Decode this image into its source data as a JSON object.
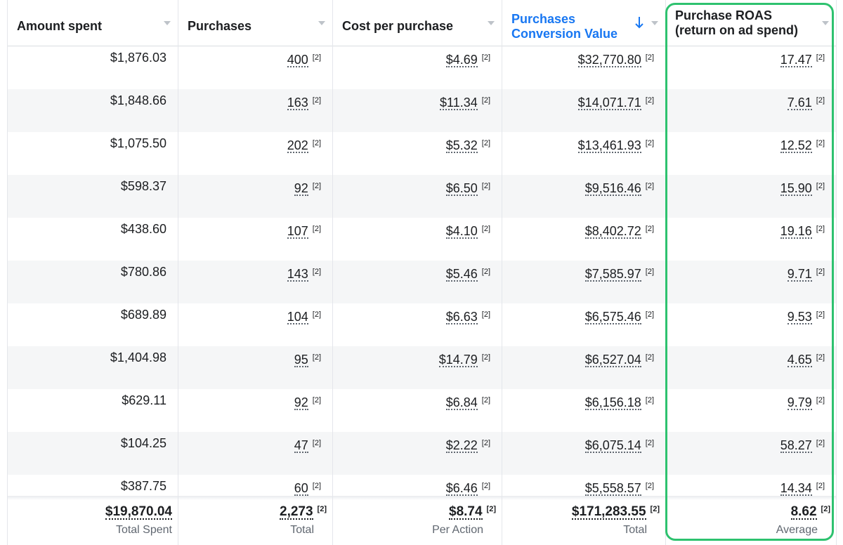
{
  "columns": [
    {
      "key": "amount_spent",
      "label": "Amount spent",
      "sorted": false
    },
    {
      "key": "purchases",
      "label": "Purchases",
      "sorted": false
    },
    {
      "key": "cost_per_purchase",
      "label": "Cost per purchase",
      "sorted": false
    },
    {
      "key": "conversion_value",
      "label": "Purchases Conversion Value",
      "sorted": true
    },
    {
      "key": "roas",
      "label": "Purchase ROAS (return on ad spend)",
      "sorted": false
    }
  ],
  "superscript": "[2]",
  "rows": [
    {
      "amount_spent": "$1,876.03",
      "purchases": "400",
      "cost_per_purchase": "$4.69",
      "conversion_value": "$32,770.80",
      "roas": "17.47"
    },
    {
      "amount_spent": "$1,848.66",
      "purchases": "163",
      "cost_per_purchase": "$11.34",
      "conversion_value": "$14,071.71",
      "roas": "7.61"
    },
    {
      "amount_spent": "$1,075.50",
      "purchases": "202",
      "cost_per_purchase": "$5.32",
      "conversion_value": "$13,461.93",
      "roas": "12.52"
    },
    {
      "amount_spent": "$598.37",
      "purchases": "92",
      "cost_per_purchase": "$6.50",
      "conversion_value": "$9,516.46",
      "roas": "15.90"
    },
    {
      "amount_spent": "$438.60",
      "purchases": "107",
      "cost_per_purchase": "$4.10",
      "conversion_value": "$8,402.72",
      "roas": "19.16"
    },
    {
      "amount_spent": "$780.86",
      "purchases": "143",
      "cost_per_purchase": "$5.46",
      "conversion_value": "$7,585.97",
      "roas": "9.71"
    },
    {
      "amount_spent": "$689.89",
      "purchases": "104",
      "cost_per_purchase": "$6.63",
      "conversion_value": "$6,575.46",
      "roas": "9.53"
    },
    {
      "amount_spent": "$1,404.98",
      "purchases": "95",
      "cost_per_purchase": "$14.79",
      "conversion_value": "$6,527.04",
      "roas": "4.65"
    },
    {
      "amount_spent": "$629.11",
      "purchases": "92",
      "cost_per_purchase": "$6.84",
      "conversion_value": "$6,156.18",
      "roas": "9.79"
    },
    {
      "amount_spent": "$104.25",
      "purchases": "47",
      "cost_per_purchase": "$2.22",
      "conversion_value": "$6,075.14",
      "roas": "58.27"
    },
    {
      "amount_spent": "$387.75",
      "purchases": "60",
      "cost_per_purchase": "$6.46",
      "conversion_value": "$5,558.57",
      "roas": "14.34"
    }
  ],
  "totals": {
    "amount_spent": {
      "value": "$19,870.04",
      "label": "Total Spent"
    },
    "purchases": {
      "value": "2,273",
      "label": "Total"
    },
    "cost_per_purchase": {
      "value": "$8.74",
      "label": "Per Action"
    },
    "conversion_value": {
      "value": "$171,283.55",
      "label": "Total"
    },
    "roas": {
      "value": "8.62",
      "label": "Average"
    }
  },
  "colors": {
    "sorted_header": "#1877f2",
    "highlight_border": "#2ec26f",
    "alt_row": "#f5f6f7"
  }
}
